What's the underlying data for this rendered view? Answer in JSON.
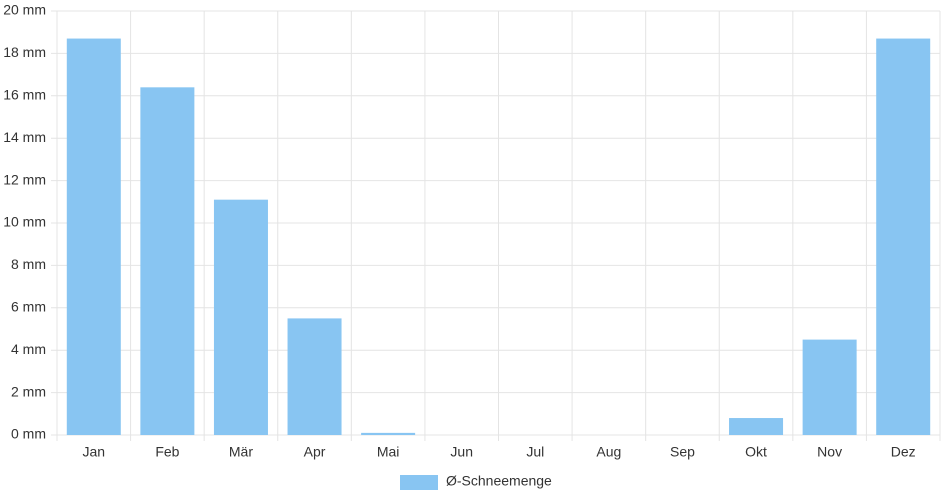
{
  "chart_data": {
    "type": "bar",
    "categories": [
      "Jan",
      "Feb",
      "Mär",
      "Apr",
      "Mai",
      "Jun",
      "Jul",
      "Aug",
      "Sep",
      "Okt",
      "Nov",
      "Dez"
    ],
    "series": [
      {
        "name": "Ø-Schneemenge",
        "color": "#88c5f2",
        "values": [
          18.7,
          16.4,
          11.1,
          5.5,
          0.1,
          0,
          0,
          0,
          0,
          0.8,
          4.5,
          18.7
        ]
      }
    ],
    "ylim": [
      0,
      20
    ],
    "yticks": [
      {
        "value": 0,
        "label": "0 mm"
      },
      {
        "value": 2,
        "label": "2 mm"
      },
      {
        "value": 4,
        "label": "4 mm"
      },
      {
        "value": 6,
        "label": "6 mm"
      },
      {
        "value": 8,
        "label": "8 mm"
      },
      {
        "value": 10,
        "label": "10 mm"
      },
      {
        "value": 12,
        "label": "12 mm"
      },
      {
        "value": 14,
        "label": "14 mm"
      },
      {
        "value": 16,
        "label": "16 mm"
      },
      {
        "value": 18,
        "label": "18 mm"
      },
      {
        "value": 20,
        "label": "20 mm"
      }
    ],
    "grid": true,
    "legend": "bottom"
  }
}
